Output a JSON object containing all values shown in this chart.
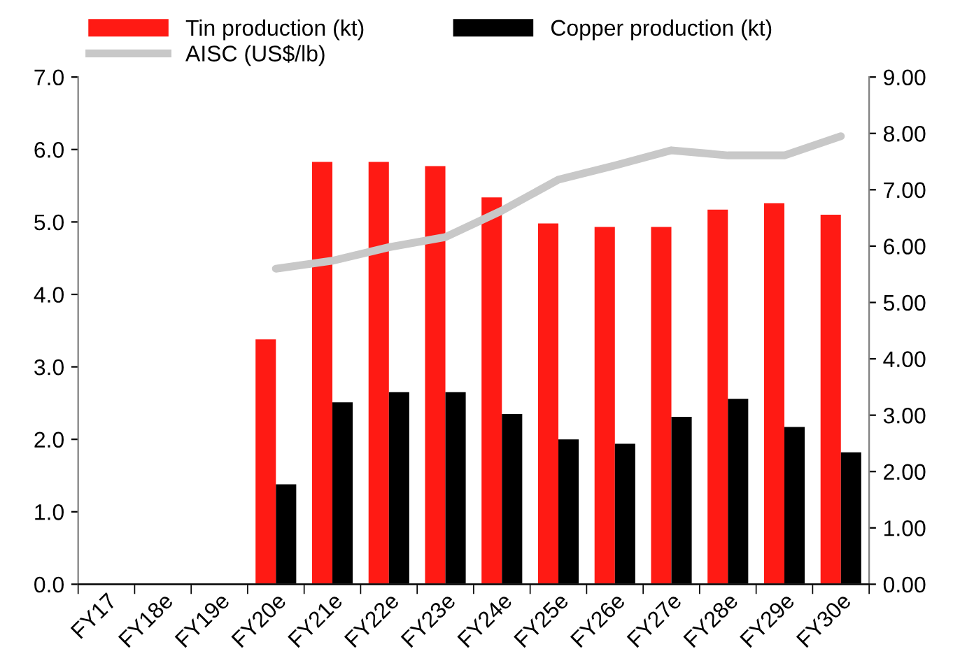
{
  "chart_data": {
    "type": "bar",
    "categories": [
      "FY17",
      "FY18e",
      "FY19e",
      "FY20e",
      "FY21e",
      "FY22e",
      "FY23e",
      "FY24e",
      "FY25e",
      "FY26e",
      "FY27e",
      "FY28e",
      "FY29e",
      "FY30e"
    ],
    "series": [
      {
        "name": "Tin production (kt)",
        "color": "#ff1a14",
        "values": [
          null,
          null,
          null,
          3.38,
          5.83,
          5.83,
          5.77,
          5.34,
          4.98,
          4.93,
          4.93,
          5.17,
          5.26,
          5.1
        ]
      },
      {
        "name": "Copper production (kt)",
        "color": "#000000",
        "values": [
          null,
          null,
          null,
          1.38,
          2.51,
          2.65,
          2.65,
          2.35,
          2.0,
          1.94,
          2.31,
          2.56,
          2.17,
          1.82
        ]
      },
      {
        "name": "AISC (US$/lb)",
        "type": "line",
        "axis": "y2",
        "color": "#c8c8c8",
        "values": [
          null,
          null,
          null,
          5.6,
          5.74,
          5.98,
          6.16,
          6.63,
          7.18,
          7.43,
          7.7,
          7.61,
          7.61,
          7.95
        ]
      }
    ],
    "ylim": [
      0,
      7
    ],
    "yticks": [
      {
        "value": 0,
        "label": "0.0"
      },
      {
        "value": 1,
        "label": "1.0"
      },
      {
        "value": 2,
        "label": "2.0"
      },
      {
        "value": 3,
        "label": "3.0"
      },
      {
        "value": 4,
        "label": "4.0"
      },
      {
        "value": 5,
        "label": "5.0"
      },
      {
        "value": 6,
        "label": "6.0"
      },
      {
        "value": 7,
        "label": "7.0"
      }
    ],
    "y2lim": [
      0,
      9
    ],
    "y2ticks": [
      {
        "value": 0,
        "label": "0.00"
      },
      {
        "value": 1,
        "label": "1.00"
      },
      {
        "value": 2,
        "label": "2.00"
      },
      {
        "value": 3,
        "label": "3.00"
      },
      {
        "value": 4,
        "label": "4.00"
      },
      {
        "value": 5,
        "label": "5.00"
      },
      {
        "value": 6,
        "label": "6.00"
      },
      {
        "value": 7,
        "label": "7.00"
      },
      {
        "value": 8,
        "label": "8.00"
      },
      {
        "value": 9,
        "label": "9.00"
      }
    ],
    "grid": false,
    "legend": "top",
    "marker": "none",
    "line_style": "solid"
  }
}
